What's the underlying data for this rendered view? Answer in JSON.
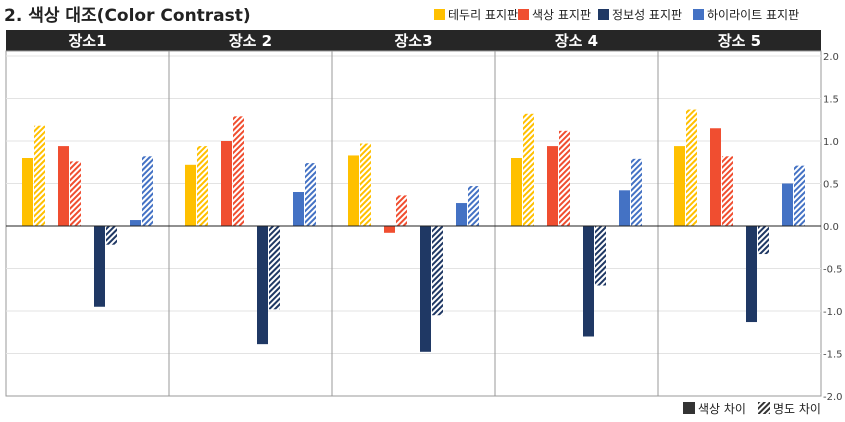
{
  "header": {
    "title": "2. 색상 대조(Color Contrast)"
  },
  "legend": {
    "categories": [
      {
        "label": "테두리 표지판",
        "color": "#FFC000"
      },
      {
        "label": "색상 표지판",
        "color": "#F04E30"
      },
      {
        "label": "정보성 표지판",
        "color": "#1F3864"
      },
      {
        "label": "하이라이트 표지판",
        "color": "#4472C4"
      }
    ],
    "patterns": [
      {
        "label": "색상 차이",
        "style": "solid",
        "color": "#333333"
      },
      {
        "label": "명도 차이",
        "style": "hatched",
        "color": "#333333"
      }
    ]
  },
  "chart_data": {
    "type": "bar",
    "title": "2. 색상 대조(Color Contrast)",
    "categories": [
      "장소1",
      "장소 2",
      "장소3",
      "장소 4",
      "장소 5"
    ],
    "ylim": [
      -2.0,
      2.0
    ],
    "yticks": [
      "2.0",
      "1.5",
      "1.0",
      "0.5",
      "0.0",
      "-0.5",
      "-1.0",
      "-1.5",
      "-2.0"
    ],
    "grid": true,
    "legend_position": "top-right and bottom-right",
    "series": [
      {
        "name": "테두리 표지판",
        "measure": "색상 차이",
        "color": "#FFC000",
        "hatched": false,
        "values": [
          0.8,
          0.72,
          0.83,
          0.8,
          0.94
        ]
      },
      {
        "name": "테두리 표지판",
        "measure": "명도 차이",
        "color": "#FFC000",
        "hatched": true,
        "values": [
          1.18,
          0.94,
          0.97,
          1.32,
          1.37
        ]
      },
      {
        "name": "색상 표지판",
        "measure": "색상 차이",
        "color": "#F04E30",
        "hatched": false,
        "values": [
          0.94,
          1.0,
          -0.08,
          0.94,
          1.15
        ]
      },
      {
        "name": "색상 표지판",
        "measure": "명도 차이",
        "color": "#F04E30",
        "hatched": true,
        "values": [
          0.76,
          1.29,
          0.36,
          1.12,
          0.82
        ]
      },
      {
        "name": "정보성 표지판",
        "measure": "색상 차이",
        "color": "#1F3864",
        "hatched": false,
        "values": [
          -0.95,
          -1.39,
          -1.48,
          -1.3,
          -1.13
        ]
      },
      {
        "name": "정보성 표지판",
        "measure": "명도 차이",
        "color": "#1F3864",
        "hatched": true,
        "values": [
          -0.22,
          -0.98,
          -1.05,
          -0.7,
          -0.33
        ]
      },
      {
        "name": "하이라이트 표지판",
        "measure": "색상 차이",
        "color": "#4472C4",
        "hatched": false,
        "values": [
          0.07,
          0.4,
          0.27,
          0.42,
          0.5
        ]
      },
      {
        "name": "하이라이트 표지판",
        "measure": "명도 차이",
        "color": "#4472C4",
        "hatched": true,
        "values": [
          0.82,
          0.74,
          0.47,
          0.79,
          0.71
        ]
      }
    ]
  }
}
